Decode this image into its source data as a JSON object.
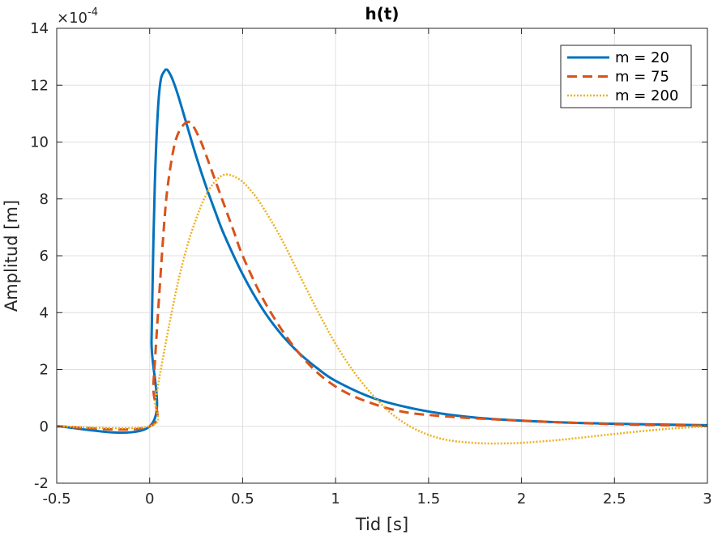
{
  "chart_data": {
    "type": "line",
    "title": "h(t)",
    "xlabel": "Tid [s]",
    "ylabel": "Amplitud [m]",
    "xlim": [
      -0.5,
      3
    ],
    "ylim": [
      -2,
      14
    ],
    "y_exponent_label": "×10",
    "y_exponent_power": "-4",
    "xticks": [
      -0.5,
      0,
      0.5,
      1,
      1.5,
      2,
      2.5,
      3
    ],
    "xtick_labels": [
      "-0.5",
      "0",
      "0.5",
      "1",
      "1.5",
      "2",
      "2.5",
      "3"
    ],
    "yticks": [
      -2,
      0,
      2,
      4,
      6,
      8,
      10,
      12,
      14
    ],
    "ytick_labels": [
      "-2",
      "0",
      "2",
      "4",
      "6",
      "8",
      "10",
      "12",
      "14"
    ],
    "grid": true,
    "legend_position": "top-right",
    "series": [
      {
        "name": "m = 20",
        "color": "#0072bd",
        "style": "solid",
        "x": [
          -0.5,
          0,
          0.01,
          0.02,
          0.03,
          0.045,
          0.06,
          0.08,
          0.09,
          0.1,
          0.12,
          0.15,
          0.2,
          0.25,
          0.3,
          0.35,
          0.4,
          0.5,
          0.6,
          0.7,
          0.8,
          0.9,
          1.0,
          1.2,
          1.4,
          1.6,
          1.8,
          2.0,
          2.3,
          2.6,
          3.0
        ],
        "y": [
          0,
          0,
          3.0,
          6.5,
          9.0,
          11.2,
          12.2,
          12.5,
          12.55,
          12.5,
          12.25,
          11.7,
          10.6,
          9.5,
          8.5,
          7.6,
          6.75,
          5.35,
          4.2,
          3.3,
          2.6,
          2.05,
          1.6,
          1.0,
          0.65,
          0.42,
          0.28,
          0.2,
          0.12,
          0.08,
          0.04
        ]
      },
      {
        "name": "m = 75",
        "color": "#d95319",
        "style": "dashed",
        "x": [
          -0.5,
          0,
          0.02,
          0.05,
          0.08,
          0.1,
          0.13,
          0.16,
          0.2,
          0.23,
          0.27,
          0.3,
          0.35,
          0.4,
          0.45,
          0.5,
          0.6,
          0.7,
          0.8,
          0.9,
          1.0,
          1.1,
          1.2,
          1.3,
          1.4,
          1.5,
          1.7,
          2.0,
          2.3,
          2.6,
          3.0
        ],
        "y": [
          0,
          0,
          1.5,
          4.5,
          7.3,
          8.6,
          9.8,
          10.4,
          10.7,
          10.6,
          10.1,
          9.6,
          8.7,
          7.8,
          6.9,
          6.0,
          4.6,
          3.5,
          2.6,
          1.9,
          1.4,
          1.05,
          0.8,
          0.6,
          0.47,
          0.4,
          0.3,
          0.2,
          0.12,
          0.06,
          0.02
        ]
      },
      {
        "name": "m = 200",
        "color": "#edb120",
        "style": "dotted",
        "x": [
          -0.5,
          0,
          0.03,
          0.06,
          0.1,
          0.15,
          0.2,
          0.25,
          0.3,
          0.35,
          0.4,
          0.45,
          0.5,
          0.55,
          0.6,
          0.7,
          0.8,
          0.9,
          1.0,
          1.1,
          1.2,
          1.3,
          1.4,
          1.5,
          1.6,
          1.7,
          1.8,
          1.9,
          2.0,
          2.2,
          2.4,
          2.6,
          2.8,
          3.0
        ],
        "y": [
          0,
          0,
          0.9,
          2.0,
          3.4,
          5.0,
          6.3,
          7.3,
          8.1,
          8.6,
          8.85,
          8.8,
          8.6,
          8.25,
          7.8,
          6.7,
          5.4,
          4.1,
          2.9,
          1.9,
          1.1,
          0.45,
          0.0,
          -0.3,
          -0.48,
          -0.56,
          -0.6,
          -0.6,
          -0.58,
          -0.48,
          -0.34,
          -0.2,
          -0.08,
          0.0
        ]
      }
    ]
  }
}
